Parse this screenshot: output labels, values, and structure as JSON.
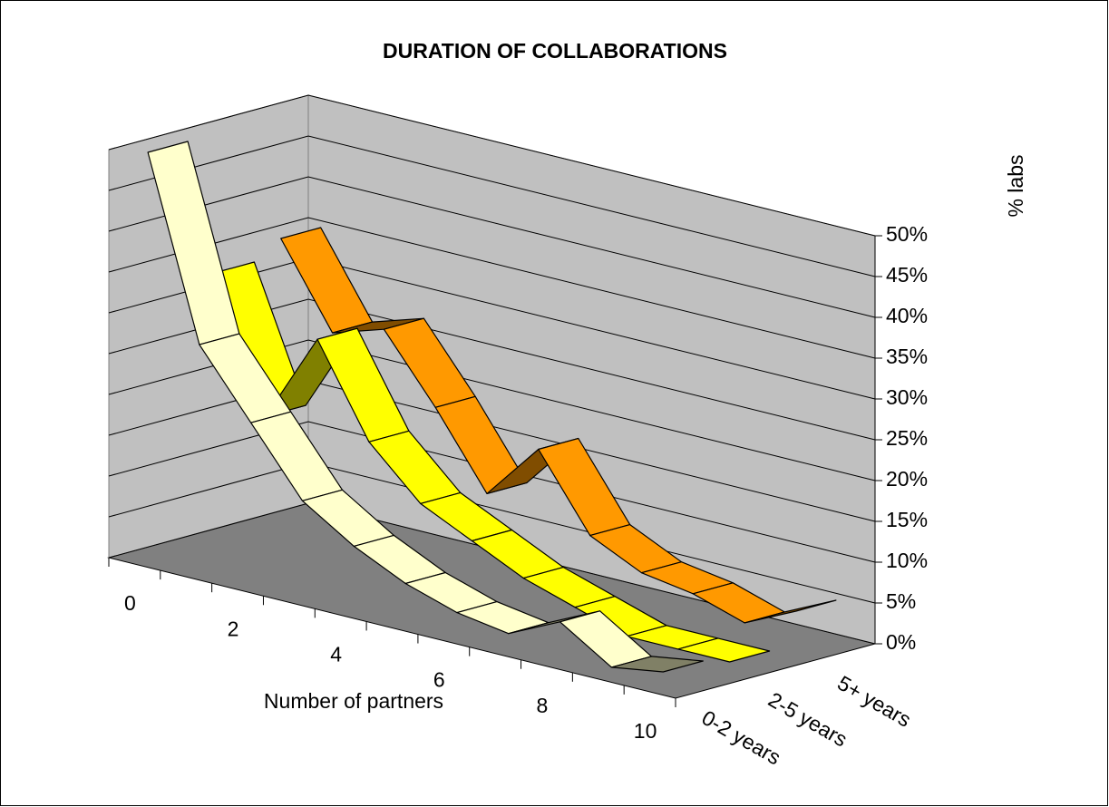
{
  "chart_data": {
    "type": "3d-line",
    "title": "DURATION OF COLLABORATIONS",
    "x_label": "Number of partners",
    "y_label": "% labs",
    "categories": [
      "0",
      null,
      "2",
      null,
      "4",
      null,
      "6",
      null,
      "8",
      null,
      "10"
    ],
    "series": [
      {
        "name": "0-2 years",
        "color": "#ffffcc",
        "values": [
          50,
          28,
          20,
          12,
          8,
          5,
          3,
          2,
          5,
          1,
          2
        ]
      },
      {
        "name": "2-5 years",
        "color": "#ffff00",
        "values": [
          33,
          17,
          28,
          17,
          11,
          8,
          5,
          3,
          1,
          1,
          1
        ]
      },
      {
        "name": "5+ years",
        "color": "#ff9900",
        "values": [
          35,
          25,
          27,
          19,
          10,
          17,
          8,
          5,
          4,
          2,
          5
        ]
      }
    ],
    "ylim": [
      0,
      50
    ],
    "yticks": [
      {
        "value": 0,
        "label": "0%"
      },
      {
        "value": 5,
        "label": "5%"
      },
      {
        "value": 10,
        "label": "10%"
      },
      {
        "value": 15,
        "label": "15%"
      },
      {
        "value": 20,
        "label": "20%"
      },
      {
        "value": 25,
        "label": "25%"
      },
      {
        "value": 30,
        "label": "30%"
      },
      {
        "value": 35,
        "label": "35%"
      },
      {
        "value": 40,
        "label": "40%"
      },
      {
        "value": 45,
        "label": "45%"
      },
      {
        "value": 50,
        "label": "50%"
      }
    ],
    "grid": true
  }
}
